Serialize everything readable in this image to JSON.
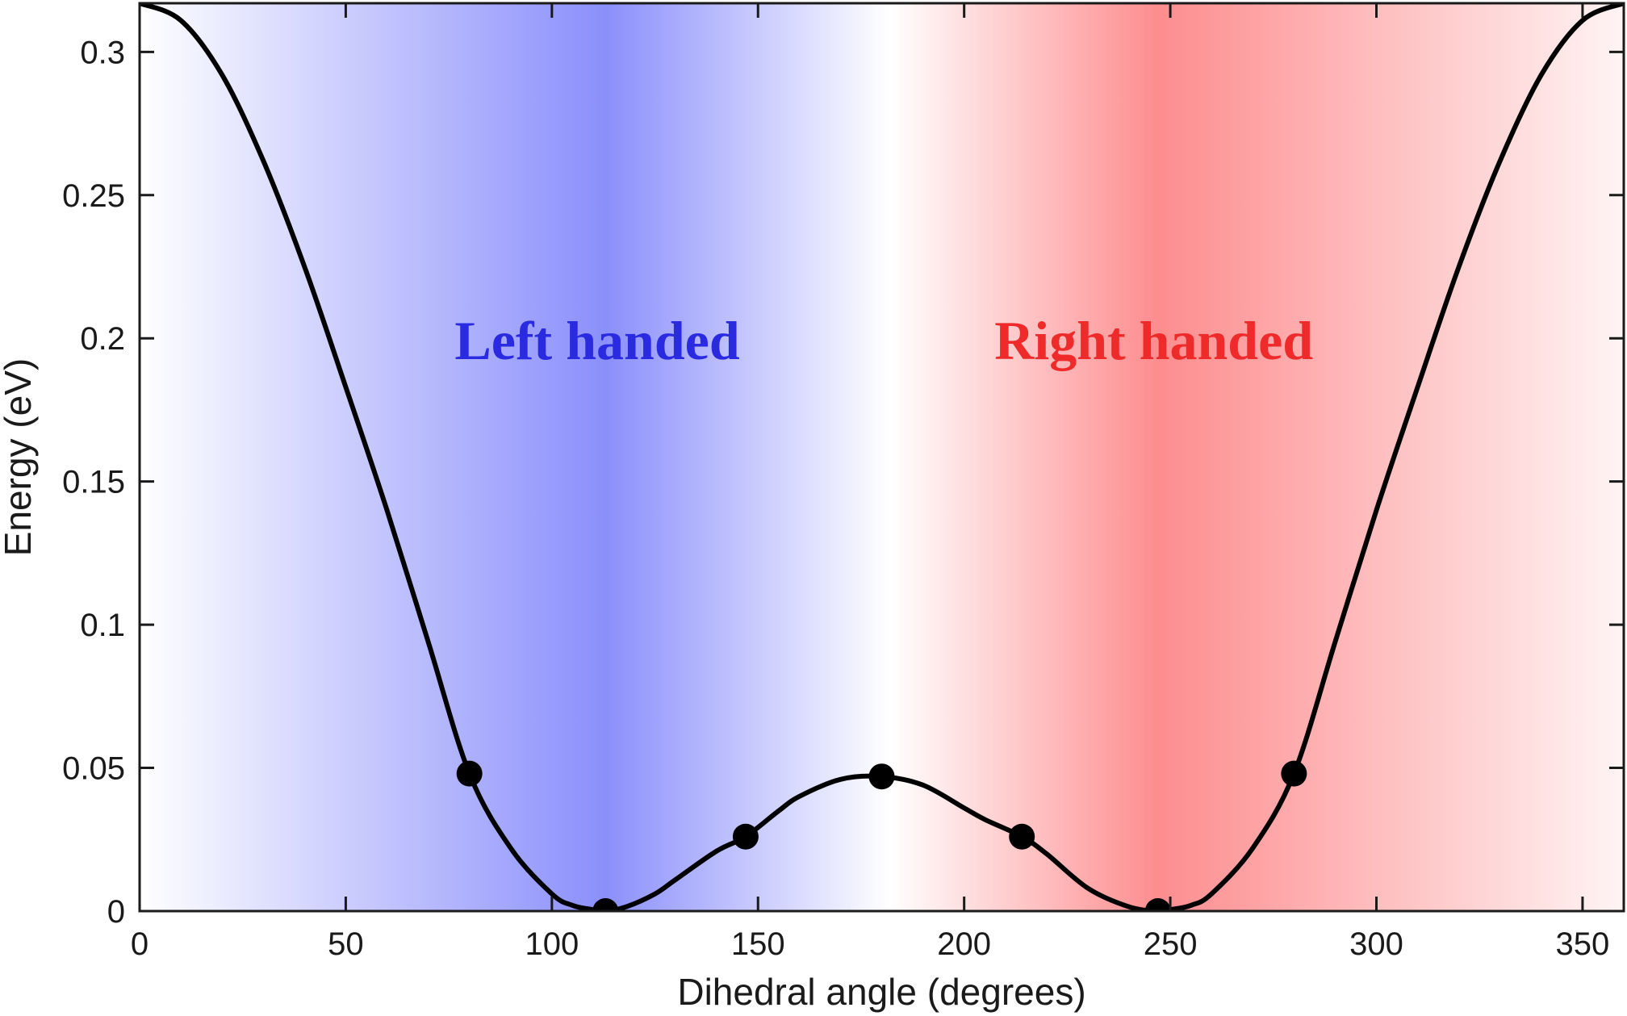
{
  "chart_data": {
    "type": "line",
    "xlabel": "Dihedral angle (degrees)",
    "ylabel": "Energy (eV)",
    "xlim": [
      0,
      360
    ],
    "ylim": [
      0,
      0.317
    ],
    "xticks": [
      0,
      50,
      100,
      150,
      200,
      250,
      300,
      350
    ],
    "yticks": [
      0,
      0.05,
      0.1,
      0.15,
      0.2,
      0.25,
      0.3
    ],
    "grid": false,
    "legend": "none",
    "background_gradient": {
      "description": "vertical color bands",
      "left_color": "#8b8ffb",
      "right_color": "#fd8d8f",
      "left_peak_x": 113,
      "right_peak_x": 247,
      "white_x": 182
    },
    "annotations": [
      {
        "text": "Left handed",
        "x": 111,
        "y": 0.199,
        "color": "#2a2ae0"
      },
      {
        "text": "Right handed",
        "x": 246,
        "y": 0.199,
        "color": "#ee2a2a"
      }
    ],
    "series": [
      {
        "style": "line",
        "color": "#000000",
        "x": [
          0,
          10,
          20,
          30,
          40,
          50,
          60,
          70,
          80,
          90,
          100,
          105,
          110,
          113,
          118,
          125,
          130,
          140,
          147,
          155,
          160,
          170,
          180,
          190,
          200,
          205,
          214,
          220,
          230,
          240,
          247,
          250,
          255,
          260,
          270,
          280,
          290,
          300,
          310,
          320,
          330,
          340,
          350,
          360
        ],
        "y": [
          0.317,
          0.311,
          0.292,
          0.262,
          0.225,
          0.183,
          0.14,
          0.094,
          0.048,
          0.022,
          0.006,
          0.002,
          0.0005,
          0.0,
          0.0015,
          0.006,
          0.011,
          0.021,
          0.026,
          0.035,
          0.04,
          0.046,
          0.047,
          0.044,
          0.036,
          0.032,
          0.026,
          0.02,
          0.008,
          0.0015,
          0.0,
          0.0005,
          0.002,
          0.006,
          0.022,
          0.048,
          0.094,
          0.14,
          0.183,
          0.225,
          0.262,
          0.292,
          0.311,
          0.317
        ]
      },
      {
        "style": "markers",
        "color": "#000000",
        "x": [
          80,
          113,
          147,
          180,
          214,
          247,
          280
        ],
        "y": [
          0.048,
          0.0,
          0.026,
          0.047,
          0.026,
          0.0,
          0.048
        ]
      }
    ]
  }
}
